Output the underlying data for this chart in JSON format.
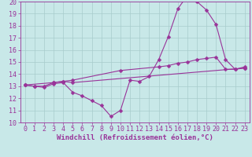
{
  "background_color": "#c8e8e8",
  "grid_color": "#a8cccc",
  "line_color": "#993399",
  "xlabel": "Windchill (Refroidissement éolien,°C)",
  "xlim": [
    -0.5,
    23.5
  ],
  "ylim": [
    10,
    20
  ],
  "yticks": [
    10,
    11,
    12,
    13,
    14,
    15,
    16,
    17,
    18,
    19,
    20
  ],
  "xticks": [
    0,
    1,
    2,
    3,
    4,
    5,
    6,
    7,
    8,
    9,
    10,
    11,
    12,
    13,
    14,
    15,
    16,
    17,
    18,
    19,
    20,
    21,
    22,
    23
  ],
  "line1_x": [
    0,
    1,
    2,
    3,
    4,
    5,
    6,
    7,
    8,
    9,
    10,
    11,
    12,
    13,
    14,
    15,
    16,
    17,
    18,
    19,
    20,
    21,
    22,
    23
  ],
  "line1_y": [
    13.1,
    13.0,
    12.9,
    13.2,
    13.3,
    12.5,
    12.2,
    11.8,
    11.4,
    10.5,
    11.0,
    13.5,
    13.4,
    13.8,
    15.2,
    17.1,
    19.4,
    20.5,
    20.0,
    19.3,
    18.1,
    15.2,
    14.4,
    14.5
  ],
  "line2_x": [
    0,
    1,
    2,
    3,
    4,
    5,
    23
  ],
  "line2_y": [
    13.1,
    13.0,
    13.0,
    13.3,
    13.4,
    13.3,
    14.5
  ],
  "line3_x": [
    0,
    3,
    4,
    5,
    10,
    14,
    15,
    16,
    17,
    18,
    19,
    20,
    21,
    22,
    23
  ],
  "line3_y": [
    13.1,
    13.3,
    13.4,
    13.5,
    14.3,
    14.6,
    14.7,
    14.9,
    15.0,
    15.2,
    15.3,
    15.4,
    14.4,
    14.4,
    14.6
  ],
  "xlabel_fontsize": 6.5,
  "tick_fontsize": 6,
  "marker_size": 2.5,
  "line_width": 0.8
}
